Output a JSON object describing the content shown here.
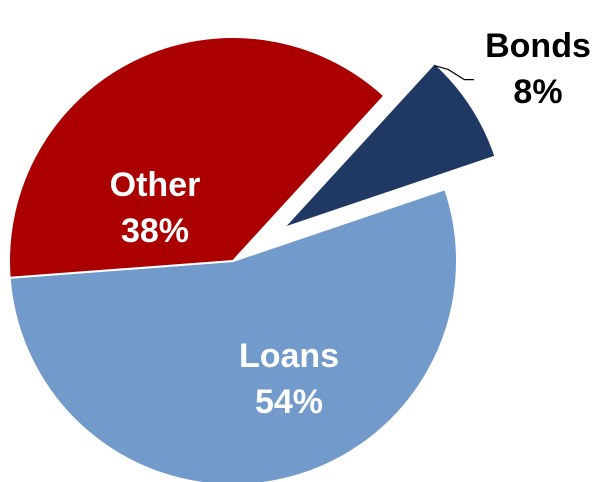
{
  "chart_data": {
    "type": "pie",
    "slices": [
      {
        "name": "Bonds",
        "label": "Bonds",
        "value": 8,
        "value_label": "8%",
        "color": "#1f3864",
        "exploded": true,
        "label_color": "#000000",
        "label_position": "outside"
      },
      {
        "name": "Loans",
        "label": "Loans",
        "value": 54,
        "value_label": "54%",
        "color": "#729acb",
        "exploded": false,
        "label_color": "#ffffff",
        "label_position": "inside"
      },
      {
        "name": "Other",
        "label": "Other",
        "value": 38,
        "value_label": "38%",
        "color": "#aa0000",
        "exploded": false,
        "label_color": "#ffffff",
        "label_position": "inside"
      }
    ],
    "title": "",
    "legend": "none",
    "slice_border_color": "#ffffff"
  }
}
